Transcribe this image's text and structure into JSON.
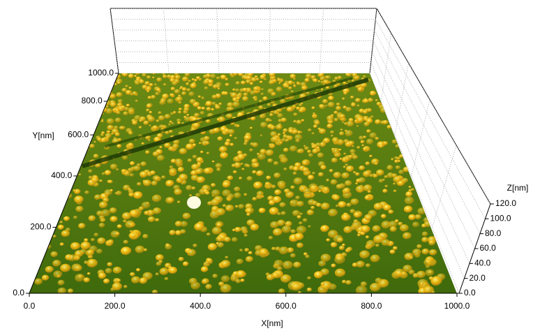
{
  "chart_data": {
    "type": "surface3d",
    "x_label": "X[nm]",
    "y_label": "Y[nm]",
    "z_label": "Z[nm]",
    "xlim": [
      0,
      1000
    ],
    "ylim": [
      0,
      1000
    ],
    "zlim": [
      0,
      120
    ],
    "xticks": [
      {
        "value": 0,
        "label": "0.0"
      },
      {
        "value": 200,
        "label": "200.0"
      },
      {
        "value": 400,
        "label": "400.0"
      },
      {
        "value": 600,
        "label": "600.0"
      },
      {
        "value": 800,
        "label": "800.0"
      },
      {
        "value": 1000,
        "label": "1000.0"
      }
    ],
    "yticks": [
      {
        "value": 0,
        "label": "0.0"
      },
      {
        "value": 200,
        "label": "200.0"
      },
      {
        "value": 400,
        "label": "400.0"
      },
      {
        "value": 600,
        "label": "600.0"
      },
      {
        "value": 800,
        "label": "800.0"
      },
      {
        "value": 1000,
        "label": "1000.0"
      }
    ],
    "zticks": [
      {
        "value": 0,
        "label": "0.0"
      },
      {
        "value": 20,
        "label": "20.0"
      },
      {
        "value": 40,
        "label": "40.0"
      },
      {
        "value": 60,
        "label": "60.0"
      },
      {
        "value": 80,
        "label": "80.0"
      },
      {
        "value": 100,
        "label": "100.0"
      },
      {
        "value": 120,
        "label": "120.0"
      }
    ],
    "grid": true
  }
}
